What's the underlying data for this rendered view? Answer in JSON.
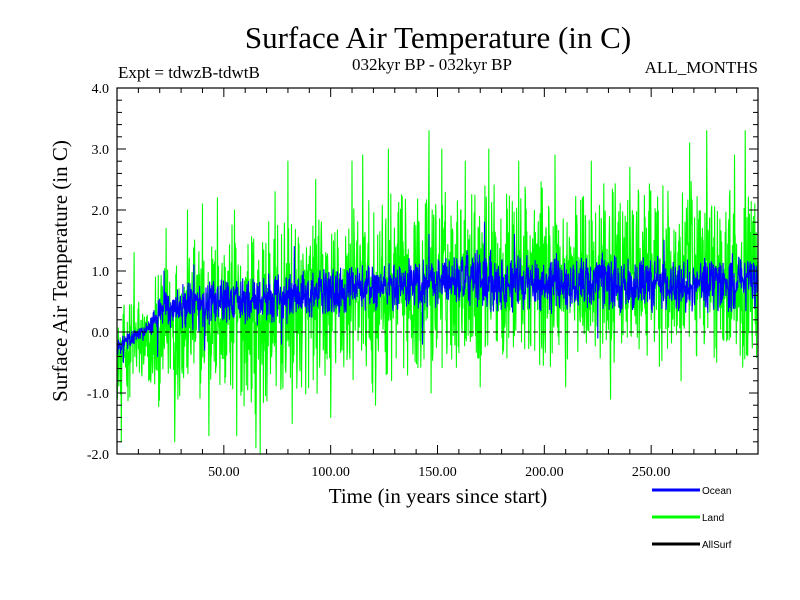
{
  "chart_data": {
    "type": "line",
    "title": "Surface Air Temperature (in C)",
    "subtitle_left": "Expt = tdwzB-tdwtB",
    "subtitle_center": "032kyr BP - 032kyr BP",
    "subtitle_right": "ALL_MONTHS",
    "xlabel": "Time (in years since start)",
    "ylabel": "Surface Air Temperature (in C)",
    "xlim": [
      0,
      300
    ],
    "ylim": [
      -2.0,
      4.0
    ],
    "x_ticks": [
      {
        "value": 50,
        "label": "50.00"
      },
      {
        "value": 100,
        "label": "100.00"
      },
      {
        "value": 150,
        "label": "150.00"
      },
      {
        "value": 200,
        "label": "200.00"
      },
      {
        "value": 250,
        "label": "250.00"
      }
    ],
    "y_ticks": [
      {
        "value": -2.0,
        "label": "-2.0"
      },
      {
        "value": -1.0,
        "label": "-1.0"
      },
      {
        "value": 0.0,
        "label": "0.0"
      },
      {
        "value": 1.0,
        "label": "1.0"
      },
      {
        "value": 2.0,
        "label": "2.0"
      },
      {
        "value": 3.0,
        "label": "3.0"
      },
      {
        "value": 4.0,
        "label": "4.0"
      }
    ],
    "zero_line": 0.0,
    "series": [
      {
        "name": "Land",
        "color": "#00ff00",
        "envelope": {
          "x": [
            0,
            5,
            10,
            15,
            20,
            25,
            30,
            40,
            50,
            60,
            70,
            80,
            90,
            100,
            110,
            120,
            130,
            140,
            150,
            160,
            170,
            180,
            190,
            200,
            210,
            220,
            230,
            240,
            250,
            260,
            270,
            280,
            290,
            300
          ],
          "upper": [
            0.3,
            0.6,
            0.8,
            0.5,
            1.0,
            1.5,
            1.6,
            1.7,
            1.9,
            1.8,
            1.9,
            1.9,
            2.0,
            2.0,
            2.2,
            2.2,
            2.4,
            2.4,
            2.5,
            2.5,
            2.6,
            2.5,
            2.5,
            2.5,
            2.4,
            2.5,
            2.5,
            2.4,
            2.5,
            2.4,
            2.5,
            2.5,
            2.5,
            2.5
          ],
          "lower": [
            -1.2,
            -1.2,
            -1.1,
            -1.1,
            -1.3,
            -1.2,
            -1.2,
            -1.2,
            -1.3,
            -1.3,
            -1.4,
            -1.2,
            -1.2,
            -1.1,
            -1.0,
            -1.0,
            -0.9,
            -0.8,
            -0.8,
            -0.6,
            -0.6,
            -0.6,
            -0.6,
            -0.7,
            -0.6,
            -0.6,
            -0.6,
            -0.6,
            -0.6,
            -0.6,
            -0.6,
            -0.6,
            -0.6,
            -0.6
          ]
        },
        "spikes": [
          {
            "x": 8,
            "y": 1.3
          },
          {
            "x": 18,
            "y": 0.9
          },
          {
            "x": 23,
            "y": 1.7
          },
          {
            "x": 33,
            "y": 2.0
          },
          {
            "x": 40,
            "y": 2.1
          },
          {
            "x": 47,
            "y": 2.2
          },
          {
            "x": 55,
            "y": 2.0
          },
          {
            "x": 74,
            "y": 2.3
          },
          {
            "x": 80,
            "y": 2.8
          },
          {
            "x": 93,
            "y": 2.5
          },
          {
            "x": 110,
            "y": 2.8
          },
          {
            "x": 115,
            "y": 2.9
          },
          {
            "x": 127,
            "y": 3.0
          },
          {
            "x": 146,
            "y": 3.3
          },
          {
            "x": 152,
            "y": 3.0
          },
          {
            "x": 163,
            "y": 2.8
          },
          {
            "x": 174,
            "y": 3.0
          },
          {
            "x": 188,
            "y": 2.8
          },
          {
            "x": 205,
            "y": 2.9
          },
          {
            "x": 222,
            "y": 2.8
          },
          {
            "x": 240,
            "y": 2.7
          },
          {
            "x": 268,
            "y": 3.1
          },
          {
            "x": 276,
            "y": 3.3
          },
          {
            "x": 289,
            "y": 2.9
          },
          {
            "x": 294,
            "y": 3.3
          },
          {
            "x": 2,
            "y": -1.8
          },
          {
            "x": 27,
            "y": -1.8
          },
          {
            "x": 43,
            "y": -1.7
          },
          {
            "x": 56,
            "y": -1.7
          },
          {
            "x": 65,
            "y": -1.9
          },
          {
            "x": 67,
            "y": -2.0
          },
          {
            "x": 82,
            "y": -1.5
          },
          {
            "x": 100,
            "y": -1.4
          },
          {
            "x": 121,
            "y": -1.2
          },
          {
            "x": 147,
            "y": -1.0
          },
          {
            "x": 170,
            "y": -0.9
          },
          {
            "x": 210,
            "y": -0.9
          },
          {
            "x": 231,
            "y": -1.1
          },
          {
            "x": 264,
            "y": -0.8
          }
        ]
      },
      {
        "name": "Ocean",
        "color": "#0000ff",
        "envelope": {
          "x": [
            0,
            5,
            10,
            15,
            20,
            25,
            30,
            40,
            50,
            60,
            70,
            80,
            90,
            100,
            110,
            120,
            130,
            140,
            150,
            160,
            170,
            180,
            190,
            200,
            210,
            220,
            230,
            240,
            250,
            260,
            270,
            280,
            290,
            300
          ],
          "upper": [
            -0.1,
            0.0,
            0.1,
            0.2,
            0.6,
            0.8,
            0.8,
            0.9,
            0.9,
            0.9,
            1.0,
            1.0,
            1.0,
            1.1,
            1.1,
            1.2,
            1.2,
            1.3,
            1.3,
            1.3,
            1.4,
            1.3,
            1.3,
            1.3,
            1.3,
            1.3,
            1.3,
            1.2,
            1.3,
            1.2,
            1.3,
            1.3,
            1.3,
            1.3
          ],
          "lower": [
            -0.4,
            -0.3,
            -0.2,
            -0.1,
            0.0,
            0.0,
            0.0,
            0.0,
            0.1,
            0.1,
            0.1,
            0.1,
            0.2,
            0.2,
            0.3,
            0.3,
            0.3,
            0.3,
            0.4,
            0.4,
            0.3,
            0.3,
            0.3,
            0.3,
            0.3,
            0.3,
            0.3,
            0.3,
            0.3,
            0.3,
            0.3,
            0.3,
            0.3,
            0.3
          ]
        },
        "spikes": [
          {
            "x": 22,
            "y": 1.0
          },
          {
            "x": 36,
            "y": 1.1
          },
          {
            "x": 83,
            "y": 1.4
          },
          {
            "x": 146,
            "y": 1.6
          },
          {
            "x": 172,
            "y": 1.8
          },
          {
            "x": 186,
            "y": 1.6
          },
          {
            "x": 256,
            "y": 1.5
          },
          {
            "x": 3,
            "y": -0.5
          },
          {
            "x": 19,
            "y": -0.4
          },
          {
            "x": 41,
            "y": -0.3
          },
          {
            "x": 77,
            "y": -0.2
          },
          {
            "x": 143,
            "y": -0.2
          },
          {
            "x": 225,
            "y": -0.1
          }
        ]
      },
      {
        "name": "AllSurf",
        "color": "#000000",
        "envelope": null,
        "spikes": []
      }
    ],
    "legend": [
      {
        "name": "Ocean",
        "color": "#0000ff"
      },
      {
        "name": "Land",
        "color": "#00ff00"
      },
      {
        "name": "AllSurf",
        "color": "#000000"
      }
    ],
    "legend_position": "bottom-right"
  }
}
